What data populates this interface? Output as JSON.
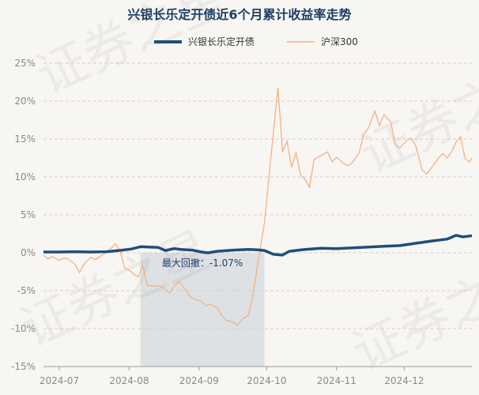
{
  "chart_data": {
    "type": "line",
    "title": "兴银长乐定开债近6个月累计收益率走势",
    "y_ticks": [
      "25%",
      "20%",
      "15%",
      "10%",
      "5%",
      "0%",
      "-5%",
      "-10%",
      "-15%"
    ],
    "y_tick_values": [
      25,
      20,
      15,
      10,
      5,
      0,
      -5,
      -10,
      -15
    ],
    "ylim": [
      -15,
      25
    ],
    "x_ticks": [
      "2024-07",
      "2024-08",
      "2024-09",
      "2024-10",
      "2024-11",
      "2024-12"
    ],
    "x_tick_dates": [
      "2024-07-01",
      "2024-08-01",
      "2024-09-01",
      "2024-10-01",
      "2024-11-01",
      "2024-12-01"
    ],
    "xlim": [
      "2024-06-24",
      "2024-12-31"
    ],
    "grid": "horizontal dashed",
    "legend_position": "top",
    "watermark": "证券之星",
    "annotation": {
      "label": "最大回撤：-1.07%",
      "start_date": "2024-08-06",
      "end_date": "2024-09-30"
    },
    "series": [
      {
        "name": "兴银长乐定开债",
        "color": "#1f4e79",
        "points": [
          [
            "2024-06-24",
            0.1
          ],
          [
            "2024-07-01",
            0.1
          ],
          [
            "2024-07-08",
            0.15
          ],
          [
            "2024-07-15",
            0.1
          ],
          [
            "2024-07-22",
            0.15
          ],
          [
            "2024-07-29",
            0.35
          ],
          [
            "2024-08-02",
            0.5
          ],
          [
            "2024-08-06",
            0.8
          ],
          [
            "2024-08-10",
            0.75
          ],
          [
            "2024-08-14",
            0.7
          ],
          [
            "2024-08-17",
            0.3
          ],
          [
            "2024-08-21",
            0.55
          ],
          [
            "2024-08-24",
            0.45
          ],
          [
            "2024-08-29",
            0.35
          ],
          [
            "2024-09-02",
            0.1
          ],
          [
            "2024-09-05",
            0.0
          ],
          [
            "2024-09-09",
            0.2
          ],
          [
            "2024-09-16",
            0.35
          ],
          [
            "2024-09-23",
            0.45
          ],
          [
            "2024-09-27",
            0.4
          ],
          [
            "2024-09-30",
            0.3
          ],
          [
            "2024-10-04",
            -0.2
          ],
          [
            "2024-10-08",
            -0.3
          ],
          [
            "2024-10-11",
            0.2
          ],
          [
            "2024-10-18",
            0.45
          ],
          [
            "2024-10-25",
            0.6
          ],
          [
            "2024-11-01",
            0.55
          ],
          [
            "2024-11-08",
            0.65
          ],
          [
            "2024-11-15",
            0.75
          ],
          [
            "2024-11-22",
            0.85
          ],
          [
            "2024-11-29",
            0.95
          ],
          [
            "2024-12-06",
            1.25
          ],
          [
            "2024-12-13",
            1.55
          ],
          [
            "2024-12-20",
            1.8
          ],
          [
            "2024-12-24",
            2.3
          ],
          [
            "2024-12-27",
            2.1
          ],
          [
            "2024-12-31",
            2.25
          ]
        ]
      },
      {
        "name": "沪深300",
        "color": "#f4b183",
        "points": [
          [
            "2024-06-24",
            -0.3
          ],
          [
            "2024-06-26",
            -0.8
          ],
          [
            "2024-06-28",
            -0.5
          ],
          [
            "2024-07-01",
            -1.0
          ],
          [
            "2024-07-03",
            -0.7
          ],
          [
            "2024-07-05",
            -0.8
          ],
          [
            "2024-07-08",
            -1.5
          ],
          [
            "2024-07-10",
            -2.6
          ],
          [
            "2024-07-12",
            -1.5
          ],
          [
            "2024-07-15",
            -0.6
          ],
          [
            "2024-07-17",
            -0.9
          ],
          [
            "2024-07-19",
            -0.5
          ],
          [
            "2024-07-22",
            0.1
          ],
          [
            "2024-07-24",
            0.6
          ],
          [
            "2024-07-26",
            1.2
          ],
          [
            "2024-07-28",
            0.2
          ],
          [
            "2024-07-30",
            -2.0
          ],
          [
            "2024-08-01",
            -2.3
          ],
          [
            "2024-08-03",
            -2.8
          ],
          [
            "2024-08-05",
            -3.2
          ],
          [
            "2024-08-07",
            -1.6
          ],
          [
            "2024-08-09",
            -4.3
          ],
          [
            "2024-08-12",
            -4.4
          ],
          [
            "2024-08-14",
            -4.3
          ],
          [
            "2024-08-16",
            -4.6
          ],
          [
            "2024-08-19",
            -5.3
          ],
          [
            "2024-08-21",
            -4.4
          ],
          [
            "2024-08-23",
            -3.8
          ],
          [
            "2024-08-26",
            -4.8
          ],
          [
            "2024-08-28",
            -5.8
          ],
          [
            "2024-08-30",
            -6.1
          ],
          [
            "2024-09-02",
            -6.4
          ],
          [
            "2024-09-04",
            -7.0
          ],
          [
            "2024-09-06",
            -6.8
          ],
          [
            "2024-09-09",
            -7.2
          ],
          [
            "2024-09-11",
            -8.3
          ],
          [
            "2024-09-13",
            -8.9
          ],
          [
            "2024-09-16",
            -9.1
          ],
          [
            "2024-09-18",
            -9.6
          ],
          [
            "2024-09-20",
            -8.8
          ],
          [
            "2024-09-23",
            -8.2
          ],
          [
            "2024-09-25",
            -5.4
          ],
          [
            "2024-09-27",
            -1.5
          ],
          [
            "2024-09-30",
            4.0
          ],
          [
            "2024-10-03",
            13.0
          ],
          [
            "2024-10-06",
            21.8
          ],
          [
            "2024-10-08",
            13.3
          ],
          [
            "2024-10-10",
            14.7
          ],
          [
            "2024-10-12",
            11.3
          ],
          [
            "2024-10-14",
            13.2
          ],
          [
            "2024-10-16",
            10.3
          ],
          [
            "2024-10-18",
            9.7
          ],
          [
            "2024-10-20",
            8.6
          ],
          [
            "2024-10-22",
            12.3
          ],
          [
            "2024-10-25",
            12.8
          ],
          [
            "2024-10-28",
            13.3
          ],
          [
            "2024-10-30",
            12.0
          ],
          [
            "2024-11-01",
            12.6
          ],
          [
            "2024-11-04",
            11.8
          ],
          [
            "2024-11-06",
            11.5
          ],
          [
            "2024-11-08",
            11.9
          ],
          [
            "2024-11-11",
            13.2
          ],
          [
            "2024-11-13",
            15.6
          ],
          [
            "2024-11-15",
            16.4
          ],
          [
            "2024-11-18",
            18.7
          ],
          [
            "2024-11-20",
            16.8
          ],
          [
            "2024-11-22",
            18.2
          ],
          [
            "2024-11-25",
            17.3
          ],
          [
            "2024-11-27",
            14.3
          ],
          [
            "2024-11-29",
            13.8
          ],
          [
            "2024-12-02",
            14.8
          ],
          [
            "2024-12-04",
            15.1
          ],
          [
            "2024-12-06",
            14.2
          ],
          [
            "2024-12-09",
            10.9
          ],
          [
            "2024-12-11",
            10.4
          ],
          [
            "2024-12-13",
            11.2
          ],
          [
            "2024-12-16",
            12.4
          ],
          [
            "2024-12-18",
            13.1
          ],
          [
            "2024-12-20",
            12.5
          ],
          [
            "2024-12-22",
            13.3
          ],
          [
            "2024-12-24",
            14.6
          ],
          [
            "2024-12-26",
            15.3
          ],
          [
            "2024-12-28",
            12.4
          ],
          [
            "2024-12-30",
            12.0
          ],
          [
            "2024-12-31",
            12.5
          ]
        ]
      }
    ]
  }
}
